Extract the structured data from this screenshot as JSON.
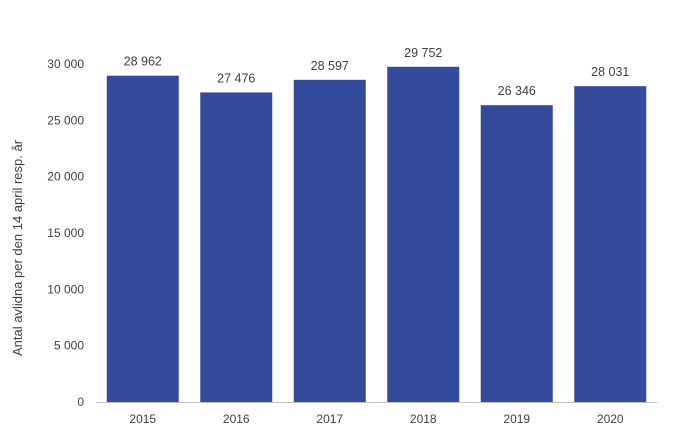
{
  "chart_data": {
    "type": "bar",
    "categories": [
      "2015",
      "2016",
      "2017",
      "2018",
      "2019",
      "2020"
    ],
    "values": [
      28962,
      27476,
      28597,
      29752,
      26346,
      28031
    ],
    "data_labels": [
      "28 962",
      "27 476",
      "28 597",
      "29 752",
      "26 346",
      "28 031"
    ],
    "title": "",
    "xlabel": "",
    "ylabel": "Antal avlidna per den 14 april resp. år",
    "ylim": [
      0,
      30000
    ],
    "yticks": [
      0,
      5000,
      10000,
      15000,
      20000,
      25000,
      30000
    ],
    "ytick_labels": [
      "0",
      "5 000",
      "10 000",
      "15 000",
      "20 000",
      "25 000",
      "30 000"
    ],
    "grid": false,
    "legend": "none",
    "bar_color": "#344a9a",
    "axis_color": "#bfbfbf"
  }
}
